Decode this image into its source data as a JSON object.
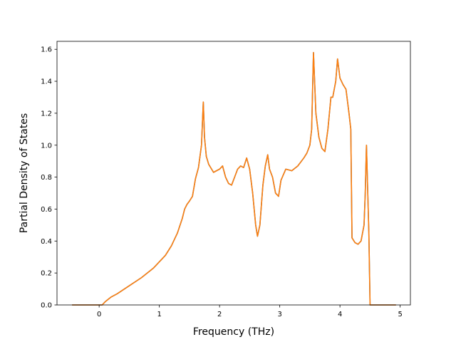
{
  "chart_data": {
    "type": "line",
    "title": "",
    "xlabel": "Frequency (THz)",
    "ylabel": "Partial Density of States",
    "xlim": [
      -0.7,
      5.17
    ],
    "ylim": [
      0,
      1.65
    ],
    "xticks": [
      0,
      1,
      2,
      3,
      4,
      5
    ],
    "yticks": [
      0.0,
      0.2,
      0.4,
      0.6,
      0.8,
      1.0,
      1.2,
      1.4,
      1.6
    ],
    "xtick_labels": [
      "0",
      "1",
      "2",
      "3",
      "4",
      "5"
    ],
    "ytick_labels": [
      "0.0",
      "0.2",
      "0.4",
      "0.6",
      "0.8",
      "1.0",
      "1.2",
      "1.4",
      "1.6"
    ],
    "grid": false,
    "legend": "none",
    "series": [
      {
        "color": "#1f77b4",
        "x": [
          -0.45,
          0.0,
          0.05,
          0.1,
          0.2,
          0.3,
          0.5,
          0.7,
          0.9,
          1.0,
          1.1,
          1.2,
          1.3,
          1.38,
          1.42,
          1.46,
          1.5,
          1.55,
          1.6,
          1.65,
          1.7,
          1.73,
          1.75,
          1.78,
          1.82,
          1.9,
          2.0,
          2.05,
          2.1,
          2.15,
          2.2,
          2.25,
          2.3,
          2.35,
          2.4,
          2.45,
          2.5,
          2.55,
          2.6,
          2.63,
          2.67,
          2.72,
          2.76,
          2.8,
          2.83,
          2.88,
          2.93,
          2.98,
          3.02,
          3.1,
          3.2,
          3.3,
          3.4,
          3.45,
          3.5,
          3.53,
          3.56,
          3.6,
          3.65,
          3.7,
          3.75,
          3.8,
          3.85,
          3.88,
          3.93,
          3.96,
          4.0,
          4.05,
          4.1,
          4.15,
          4.18,
          4.2,
          4.25,
          4.3,
          4.35,
          4.4,
          4.42,
          4.44,
          4.48,
          4.5,
          4.6,
          4.93
        ],
        "values": [
          0.0,
          0.0,
          0.0,
          0.02,
          0.05,
          0.07,
          0.12,
          0.17,
          0.23,
          0.27,
          0.31,
          0.37,
          0.45,
          0.54,
          0.6,
          0.63,
          0.65,
          0.68,
          0.79,
          0.86,
          1.0,
          1.27,
          1.05,
          0.93,
          0.88,
          0.83,
          0.85,
          0.87,
          0.8,
          0.76,
          0.75,
          0.8,
          0.85,
          0.87,
          0.86,
          0.92,
          0.85,
          0.7,
          0.5,
          0.43,
          0.5,
          0.75,
          0.87,
          0.94,
          0.85,
          0.8,
          0.7,
          0.68,
          0.78,
          0.85,
          0.84,
          0.87,
          0.92,
          0.95,
          1.0,
          1.1,
          1.58,
          1.2,
          1.05,
          0.98,
          0.96,
          1.1,
          1.3,
          1.3,
          1.4,
          1.54,
          1.42,
          1.38,
          1.35,
          1.2,
          1.1,
          0.42,
          0.39,
          0.38,
          0.4,
          0.5,
          0.7,
          1.0,
          0.45,
          0.0,
          0.0,
          0.0
        ]
      },
      {
        "color": "#ff7f0e",
        "x": [
          -0.45,
          0.0,
          0.05,
          0.1,
          0.2,
          0.3,
          0.5,
          0.7,
          0.9,
          1.0,
          1.1,
          1.2,
          1.3,
          1.38,
          1.42,
          1.46,
          1.5,
          1.55,
          1.6,
          1.65,
          1.7,
          1.73,
          1.75,
          1.78,
          1.82,
          1.9,
          2.0,
          2.05,
          2.1,
          2.15,
          2.2,
          2.25,
          2.3,
          2.35,
          2.4,
          2.45,
          2.5,
          2.55,
          2.6,
          2.63,
          2.67,
          2.72,
          2.76,
          2.8,
          2.83,
          2.88,
          2.93,
          2.98,
          3.02,
          3.1,
          3.2,
          3.3,
          3.4,
          3.45,
          3.5,
          3.53,
          3.56,
          3.6,
          3.65,
          3.7,
          3.75,
          3.8,
          3.85,
          3.88,
          3.93,
          3.96,
          4.0,
          4.05,
          4.1,
          4.15,
          4.18,
          4.2,
          4.25,
          4.3,
          4.35,
          4.4,
          4.42,
          4.44,
          4.48,
          4.5,
          4.6,
          4.93
        ],
        "values": [
          0.0,
          0.0,
          0.0,
          0.02,
          0.05,
          0.07,
          0.12,
          0.17,
          0.23,
          0.27,
          0.31,
          0.37,
          0.45,
          0.54,
          0.6,
          0.63,
          0.65,
          0.68,
          0.79,
          0.86,
          1.0,
          1.27,
          1.05,
          0.93,
          0.88,
          0.83,
          0.85,
          0.87,
          0.8,
          0.76,
          0.75,
          0.8,
          0.85,
          0.87,
          0.86,
          0.92,
          0.85,
          0.7,
          0.5,
          0.43,
          0.5,
          0.75,
          0.87,
          0.94,
          0.85,
          0.8,
          0.7,
          0.68,
          0.78,
          0.85,
          0.84,
          0.87,
          0.92,
          0.95,
          1.0,
          1.1,
          1.58,
          1.2,
          1.05,
          0.98,
          0.96,
          1.1,
          1.3,
          1.3,
          1.4,
          1.54,
          1.42,
          1.38,
          1.35,
          1.2,
          1.1,
          0.42,
          0.39,
          0.38,
          0.4,
          0.5,
          0.7,
          1.0,
          0.45,
          0.0,
          0.0,
          0.0
        ]
      }
    ]
  }
}
